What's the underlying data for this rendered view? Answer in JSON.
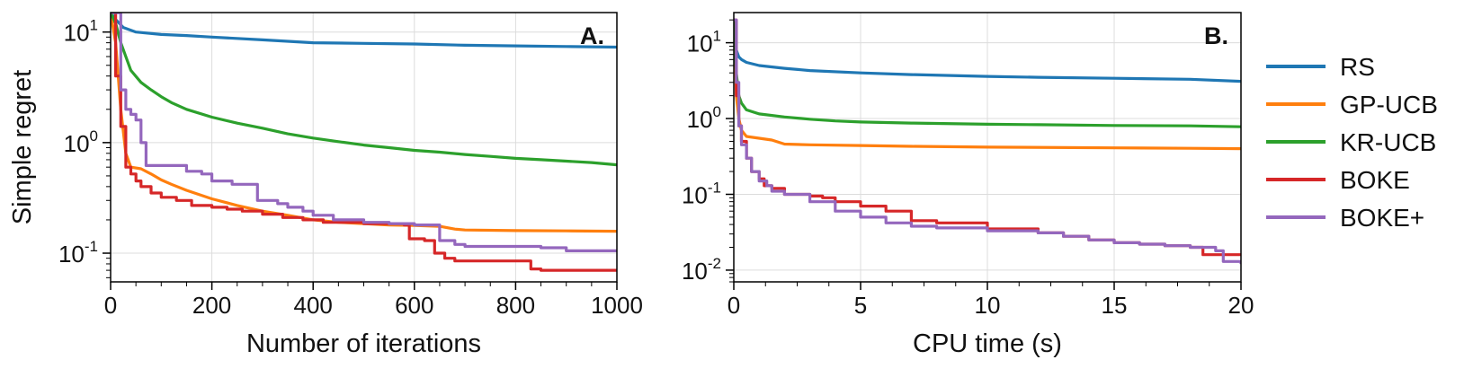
{
  "colors": {
    "RS": "#1f77b4",
    "GP-UCB": "#ff7f0e",
    "KR-UCB": "#2ca02c",
    "BOKE": "#d62728",
    "BOKE+": "#9467bd",
    "grid": "#dcdcdc",
    "axis": "#000000"
  },
  "legend": {
    "placement": "right",
    "entries": [
      "RS",
      "GP-UCB",
      "KR-UCB",
      "BOKE",
      "BOKE+"
    ]
  },
  "chart_data": [
    {
      "type": "line",
      "panel_label": "A.",
      "xlabel": "Number of iterations",
      "ylabel": "Simple regret",
      "yscale": "log",
      "xlim": [
        0,
        1000
      ],
      "ylim": [
        0.055,
        15
      ],
      "xticks": [
        0,
        200,
        400,
        600,
        800,
        1000
      ],
      "xtick_labels": [
        "0",
        "200",
        "400",
        "600",
        "800",
        "1000"
      ],
      "yticks": [
        0.1,
        1,
        10
      ],
      "ytick_labels": [
        [
          "10",
          "-1"
        ],
        [
          "10",
          "0"
        ],
        [
          "10",
          "1"
        ]
      ],
      "grid": true,
      "series": [
        {
          "name": "RS",
          "step": false,
          "x": [
            0,
            10,
            25,
            50,
            100,
            150,
            200,
            300,
            400,
            500,
            600,
            700,
            800,
            900,
            1000
          ],
          "y": [
            15,
            13,
            11,
            10,
            9.5,
            9.3,
            9.0,
            8.5,
            8.0,
            7.9,
            7.8,
            7.6,
            7.5,
            7.4,
            7.3
          ]
        },
        {
          "name": "GP-UCB",
          "step": false,
          "x": [
            0,
            10,
            20,
            30,
            40,
            60,
            80,
            100,
            120,
            150,
            200,
            250,
            300,
            350,
            400,
            450,
            500,
            550,
            600,
            650,
            680,
            700,
            800,
            900,
            1000
          ],
          "y": [
            15,
            8,
            2.0,
            0.8,
            0.6,
            0.58,
            0.52,
            0.46,
            0.42,
            0.37,
            0.31,
            0.27,
            0.24,
            0.22,
            0.2,
            0.19,
            0.185,
            0.18,
            0.178,
            0.175,
            0.165,
            0.162,
            0.16,
            0.159,
            0.158
          ]
        },
        {
          "name": "KR-UCB",
          "step": false,
          "x": [
            0,
            10,
            20,
            30,
            40,
            60,
            80,
            100,
            120,
            150,
            200,
            250,
            300,
            350,
            400,
            450,
            500,
            550,
            600,
            650,
            700,
            750,
            800,
            850,
            900,
            950,
            1000
          ],
          "y": [
            15,
            12,
            8,
            6.0,
            4.5,
            3.5,
            3.0,
            2.6,
            2.3,
            2.0,
            1.7,
            1.5,
            1.35,
            1.2,
            1.1,
            1.02,
            0.95,
            0.9,
            0.85,
            0.82,
            0.78,
            0.75,
            0.72,
            0.7,
            0.68,
            0.66,
            0.63
          ]
        },
        {
          "name": "BOKE",
          "step": true,
          "x": [
            0,
            10,
            20,
            30,
            40,
            50,
            60,
            80,
            100,
            130,
            160,
            200,
            230,
            260,
            300,
            340,
            380,
            420,
            500,
            580,
            590,
            620,
            640,
            660,
            680,
            700,
            830,
            850,
            1000
          ],
          "y": [
            15,
            4.0,
            1.4,
            0.6,
            0.52,
            0.45,
            0.4,
            0.35,
            0.32,
            0.3,
            0.27,
            0.26,
            0.25,
            0.24,
            0.225,
            0.21,
            0.2,
            0.19,
            0.185,
            0.18,
            0.135,
            0.13,
            0.1,
            0.09,
            0.085,
            0.085,
            0.072,
            0.07,
            0.07
          ]
        },
        {
          "name": "BOKE+",
          "step": true,
          "x": [
            0,
            20,
            30,
            40,
            50,
            60,
            70,
            120,
            150,
            180,
            200,
            240,
            290,
            330,
            350,
            380,
            400,
            440,
            500,
            550,
            600,
            650,
            680,
            700,
            850,
            900,
            1000
          ],
          "y": [
            15,
            3.0,
            2.0,
            1.8,
            1.6,
            1.0,
            0.62,
            0.62,
            0.55,
            0.52,
            0.45,
            0.42,
            0.3,
            0.28,
            0.26,
            0.24,
            0.22,
            0.2,
            0.19,
            0.185,
            0.18,
            0.13,
            0.12,
            0.115,
            0.112,
            0.105,
            0.102
          ]
        }
      ]
    },
    {
      "type": "line",
      "panel_label": "B.",
      "xlabel": "CPU time (s)",
      "ylabel": "",
      "yscale": "log",
      "xlim": [
        0,
        20
      ],
      "ylim": [
        0.007,
        25
      ],
      "xticks": [
        0,
        5,
        10,
        15,
        20
      ],
      "xtick_labels": [
        "0",
        "5",
        "10",
        "15",
        "20"
      ],
      "yticks": [
        0.01,
        0.1,
        1,
        10
      ],
      "ytick_labels": [
        [
          "10",
          "-2"
        ],
        [
          "10",
          "-1"
        ],
        [
          "10",
          "0"
        ],
        [
          "10",
          "1"
        ]
      ],
      "grid": true,
      "series": [
        {
          "name": "RS",
          "step": false,
          "x": [
            0,
            0.05,
            0.1,
            0.2,
            0.3,
            0.5,
            1,
            2,
            3,
            5,
            7,
            10,
            12,
            15,
            18,
            20
          ],
          "y": [
            20,
            12,
            8,
            6.5,
            6.0,
            5.5,
            5.0,
            4.6,
            4.3,
            4.0,
            3.8,
            3.6,
            3.5,
            3.4,
            3.3,
            3.1
          ]
        },
        {
          "name": "GP-UCB",
          "step": false,
          "x": [
            0,
            0.05,
            0.1,
            0.2,
            0.3,
            0.5,
            1,
            1.5,
            2,
            3,
            5,
            7,
            10,
            15,
            18,
            20
          ],
          "y": [
            20,
            8,
            2.0,
            1.0,
            0.7,
            0.58,
            0.55,
            0.52,
            0.46,
            0.45,
            0.44,
            0.43,
            0.42,
            0.41,
            0.405,
            0.4
          ]
        },
        {
          "name": "KR-UCB",
          "step": false,
          "x": [
            0,
            0.05,
            0.1,
            0.2,
            0.3,
            0.5,
            1,
            2,
            3,
            4,
            5,
            7,
            10,
            12,
            15,
            18,
            20
          ],
          "y": [
            20,
            8,
            4.0,
            2.0,
            1.6,
            1.3,
            1.15,
            1.05,
            0.98,
            0.93,
            0.9,
            0.87,
            0.84,
            0.83,
            0.81,
            0.8,
            0.78
          ]
        },
        {
          "name": "BOKE",
          "step": true,
          "x": [
            0,
            0.1,
            0.2,
            0.3,
            0.5,
            0.7,
            1,
            1.2,
            1.5,
            2,
            3,
            3.5,
            4,
            5,
            6,
            7,
            8,
            10,
            12,
            13,
            14,
            15,
            16,
            17,
            18,
            18.5,
            20
          ],
          "y": [
            20,
            2.0,
            0.8,
            0.5,
            0.3,
            0.2,
            0.16,
            0.13,
            0.12,
            0.1,
            0.095,
            0.09,
            0.08,
            0.07,
            0.06,
            0.045,
            0.042,
            0.035,
            0.031,
            0.028,
            0.025,
            0.023,
            0.022,
            0.021,
            0.02,
            0.016,
            0.016
          ]
        },
        {
          "name": "BOKE+",
          "step": true,
          "x": [
            0,
            0.1,
            0.2,
            0.3,
            0.5,
            0.7,
            1,
            1.3,
            1.5,
            2,
            3,
            4,
            5,
            6,
            7,
            8,
            10,
            12,
            13,
            14,
            15,
            16,
            17,
            18,
            19,
            19.3,
            20
          ],
          "y": [
            20,
            3.0,
            0.8,
            0.45,
            0.3,
            0.2,
            0.15,
            0.13,
            0.11,
            0.1,
            0.08,
            0.06,
            0.05,
            0.042,
            0.038,
            0.036,
            0.033,
            0.031,
            0.028,
            0.025,
            0.023,
            0.022,
            0.021,
            0.02,
            0.018,
            0.013,
            0.012
          ]
        }
      ]
    }
  ]
}
